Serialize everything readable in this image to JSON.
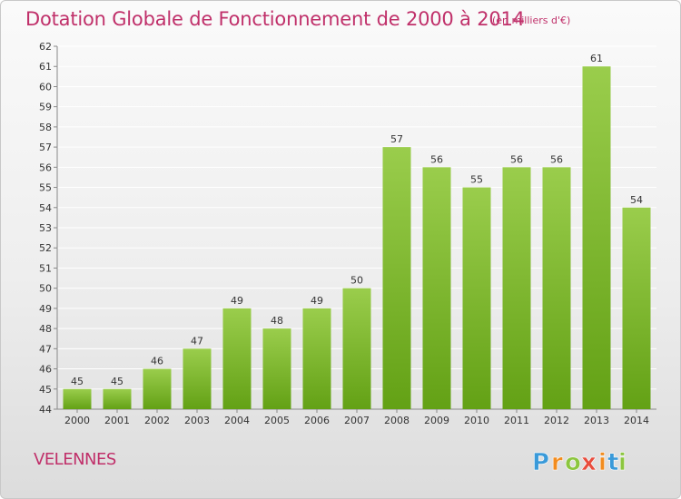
{
  "chart_data": {
    "type": "bar",
    "title": "Dotation Globale de Fonctionnement de 2000 à 2014",
    "subtitle": "(en milliers d'€)",
    "categories": [
      "2000",
      "2001",
      "2002",
      "2003",
      "2004",
      "2005",
      "2006",
      "2007",
      "2008",
      "2009",
      "2010",
      "2011",
      "2012",
      "2013",
      "2014"
    ],
    "values": [
      45,
      45,
      46,
      47,
      49,
      48,
      49,
      50,
      57,
      56,
      55,
      56,
      56,
      61,
      54
    ],
    "ylim": [
      44,
      62
    ],
    "yticks": [
      44,
      45,
      46,
      47,
      48,
      49,
      50,
      51,
      52,
      53,
      54,
      55,
      56,
      57,
      58,
      59,
      60,
      61,
      62
    ],
    "grid": true,
    "bar_color": "#7fbf2f",
    "xlabel": "",
    "ylabel": ""
  },
  "location": "VELENNES",
  "brand": {
    "name": "Proxiti",
    "letters": [
      "P",
      "r",
      "o",
      "x",
      "i",
      "t",
      "i"
    ],
    "letter_colors": [
      "#3a9ad9",
      "#f28c1e",
      "#8cc63f",
      "#e84c3d",
      "#f28c1e",
      "#3a9ad9",
      "#8cc63f"
    ]
  },
  "colors": {
    "accent": "#c0306a",
    "grid": "#ffffff",
    "axis": "#888888"
  }
}
